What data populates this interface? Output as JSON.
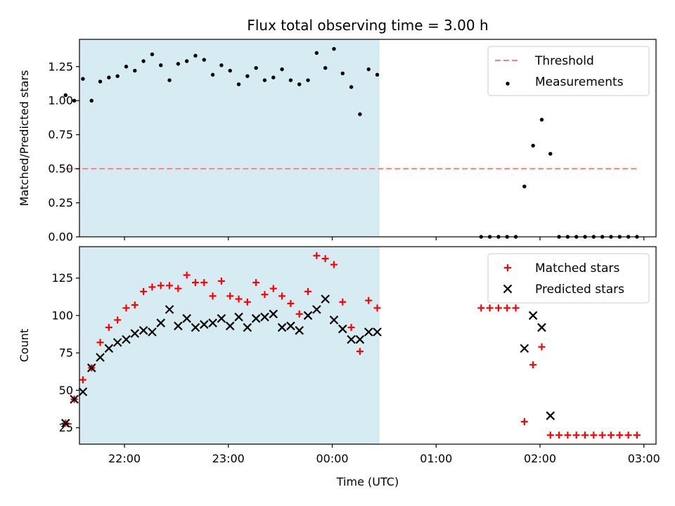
{
  "chart_data": {
    "title": "Flux total observing time = 3.00 h",
    "xlabel": "Time (UTC)",
    "x_unit": "hours (UTC, continuing past midnight)",
    "xlim": [
      "21:34",
      "03:07"
    ],
    "x_ticks": [
      {
        "label": "22:00",
        "t": "22:00"
      },
      {
        "label": "23:00",
        "t": "23:00"
      },
      {
        "label": "00:00",
        "t": "00:00"
      },
      {
        "label": "01:00",
        "t": "01:00"
      },
      {
        "label": "02:00",
        "t": "02:00"
      },
      {
        "label": "03:00",
        "t": "03:00"
      }
    ],
    "shaded_interval": {
      "start": "21:26",
      "end": "00:27",
      "color": "#add8e6"
    },
    "panels": [
      {
        "type": "scatter",
        "ylabel": "Matched/Predicted stars",
        "ylim": [
          0,
          1.45
        ],
        "y_ticks": [
          "0.00",
          "0.25",
          "0.50",
          "0.75",
          "1.00",
          "1.25"
        ],
        "legend_position": "upper right",
        "threshold": {
          "name": "Threshold",
          "value": 0.5,
          "x_start": "21:26",
          "x_end": "02:56",
          "color": "#ff7f7f"
        },
        "series": [
          {
            "name": "Measurements",
            "marker": "dot",
            "color": "#000000",
            "points": [
              [
                "21:26",
                1.04
              ],
              [
                "21:31",
                1.0
              ],
              [
                "21:36",
                1.16
              ],
              [
                "21:41",
                1.0
              ],
              [
                "21:46",
                1.14
              ],
              [
                "21:51",
                1.17
              ],
              [
                "21:56",
                1.18
              ],
              [
                "22:01",
                1.25
              ],
              [
                "22:06",
                1.22
              ],
              [
                "22:11",
                1.29
              ],
              [
                "22:16",
                1.34
              ],
              [
                "22:21",
                1.26
              ],
              [
                "22:26",
                1.15
              ],
              [
                "22:31",
                1.27
              ],
              [
                "22:36",
                1.29
              ],
              [
                "22:41",
                1.33
              ],
              [
                "22:46",
                1.3
              ],
              [
                "22:51",
                1.19
              ],
              [
                "22:56",
                1.26
              ],
              [
                "23:01",
                1.22
              ],
              [
                "23:06",
                1.12
              ],
              [
                "23:11",
                1.18
              ],
              [
                "23:16",
                1.24
              ],
              [
                "23:21",
                1.15
              ],
              [
                "23:26",
                1.17
              ],
              [
                "23:31",
                1.23
              ],
              [
                "23:36",
                1.15
              ],
              [
                "23:41",
                1.12
              ],
              [
                "23:46",
                1.15
              ],
              [
                "23:51",
                1.35
              ],
              [
                "23:56",
                1.24
              ],
              [
                "00:01",
                1.38
              ],
              [
                "00:06",
                1.2
              ],
              [
                "00:11",
                1.1
              ],
              [
                "00:16",
                0.9
              ],
              [
                "00:21",
                1.23
              ],
              [
                "00:26",
                1.19
              ],
              [
                "01:26",
                0.0
              ],
              [
                "01:31",
                0.0
              ],
              [
                "01:36",
                0.0
              ],
              [
                "01:41",
                0.0
              ],
              [
                "01:46",
                0.0
              ],
              [
                "01:51",
                0.37
              ],
              [
                "01:56",
                0.67
              ],
              [
                "02:01",
                0.86
              ],
              [
                "02:06",
                0.61
              ],
              [
                "02:11",
                0.0
              ],
              [
                "02:16",
                0.0
              ],
              [
                "02:21",
                0.0
              ],
              [
                "02:26",
                0.0
              ],
              [
                "02:31",
                0.0
              ],
              [
                "02:36",
                0.0
              ],
              [
                "02:41",
                0.0
              ],
              [
                "02:46",
                0.0
              ],
              [
                "02:51",
                0.0
              ],
              [
                "02:56",
                0.0
              ]
            ]
          }
        ]
      },
      {
        "type": "scatter",
        "ylabel": "Count",
        "ylim": [
          14,
          146
        ],
        "y_ticks": [
          "25",
          "50",
          "75",
          "100",
          "125"
        ],
        "legend_position": "upper right",
        "series": [
          {
            "name": "Matched stars",
            "marker": "plus",
            "color": "#ff0000",
            "points": [
              [
                "21:26",
                28
              ],
              [
                "21:31",
                44
              ],
              [
                "21:36",
                57
              ],
              [
                "21:41",
                65
              ],
              [
                "21:46",
                82
              ],
              [
                "21:51",
                92
              ],
              [
                "21:56",
                97
              ],
              [
                "22:01",
                105
              ],
              [
                "22:06",
                107
              ],
              [
                "22:11",
                116
              ],
              [
                "22:16",
                119
              ],
              [
                "22:21",
                120
              ],
              [
                "22:26",
                120
              ],
              [
                "22:31",
                118
              ],
              [
                "22:36",
                127
              ],
              [
                "22:41",
                122
              ],
              [
                "22:46",
                122
              ],
              [
                "22:51",
                113
              ],
              [
                "22:56",
                123
              ],
              [
                "23:01",
                113
              ],
              [
                "23:06",
                111
              ],
              [
                "23:11",
                109
              ],
              [
                "23:16",
                122
              ],
              [
                "23:21",
                114
              ],
              [
                "23:26",
                118
              ],
              [
                "23:31",
                113
              ],
              [
                "23:36",
                108
              ],
              [
                "23:41",
                101
              ],
              [
                "23:46",
                116
              ],
              [
                "23:51",
                140
              ],
              [
                "23:56",
                138
              ],
              [
                "00:01",
                134
              ],
              [
                "00:06",
                109
              ],
              [
                "00:11",
                92
              ],
              [
                "00:16",
                76
              ],
              [
                "00:21",
                110
              ],
              [
                "00:26",
                105
              ],
              [
                "01:26",
                105
              ],
              [
                "01:31",
                105
              ],
              [
                "01:36",
                105
              ],
              [
                "01:41",
                105
              ],
              [
                "01:46",
                105
              ],
              [
                "01:51",
                29
              ],
              [
                "01:56",
                67
              ],
              [
                "02:01",
                79
              ],
              [
                "02:06",
                20
              ],
              [
                "02:11",
                20
              ],
              [
                "02:16",
                20
              ],
              [
                "02:21",
                20
              ],
              [
                "02:26",
                20
              ],
              [
                "02:31",
                20
              ],
              [
                "02:36",
                20
              ],
              [
                "02:41",
                20
              ],
              [
                "02:46",
                20
              ],
              [
                "02:51",
                20
              ],
              [
                "02:56",
                20
              ]
            ]
          },
          {
            "name": "Predicted stars",
            "marker": "x",
            "color": "#000000",
            "points": [
              [
                "21:26",
                28
              ],
              [
                "21:31",
                44
              ],
              [
                "21:36",
                49
              ],
              [
                "21:41",
                65
              ],
              [
                "21:46",
                72
              ],
              [
                "21:51",
                78
              ],
              [
                "21:56",
                82
              ],
              [
                "22:01",
                84
              ],
              [
                "22:06",
                88
              ],
              [
                "22:11",
                90
              ],
              [
                "22:16",
                89
              ],
              [
                "22:21",
                95
              ],
              [
                "22:26",
                104
              ],
              [
                "22:31",
                93
              ],
              [
                "22:36",
                98
              ],
              [
                "22:41",
                92
              ],
              [
                "22:46",
                94
              ],
              [
                "22:51",
                95
              ],
              [
                "22:56",
                98
              ],
              [
                "23:01",
                93
              ],
              [
                "23:06",
                99
              ],
              [
                "23:11",
                92
              ],
              [
                "23:16",
                98
              ],
              [
                "23:21",
                99
              ],
              [
                "23:26",
                101
              ],
              [
                "23:31",
                92
              ],
              [
                "23:36",
                93
              ],
              [
                "23:41",
                90
              ],
              [
                "23:46",
                100
              ],
              [
                "23:51",
                104
              ],
              [
                "23:56",
                111
              ],
              [
                "00:01",
                97
              ],
              [
                "00:06",
                91
              ],
              [
                "00:11",
                84
              ],
              [
                "00:16",
                84
              ],
              [
                "00:21",
                89
              ],
              [
                "00:26",
                89
              ],
              [
                "01:51",
                78
              ],
              [
                "01:56",
                100
              ],
              [
                "02:01",
                92
              ],
              [
                "02:06",
                33
              ]
            ]
          }
        ]
      }
    ]
  }
}
